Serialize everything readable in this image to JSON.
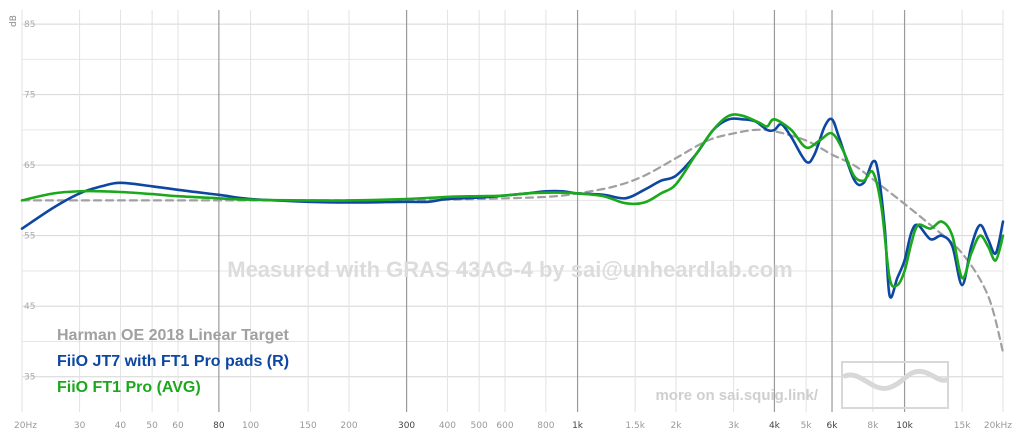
{
  "chart_data": {
    "type": "line",
    "ylabel": "dB",
    "ylim": [
      30,
      87
    ],
    "xlim": [
      20,
      20000
    ],
    "x_scale": "log",
    "grid": true,
    "y_ticks": [
      35,
      45,
      55,
      65,
      75,
      85
    ],
    "x_ticks": [
      {
        "value": 20,
        "label": "20Hz",
        "major": false
      },
      {
        "value": 30,
        "label": "30",
        "major": false
      },
      {
        "value": 40,
        "label": "40",
        "major": false
      },
      {
        "value": 50,
        "label": "50",
        "major": false
      },
      {
        "value": 60,
        "label": "60",
        "major": false
      },
      {
        "value": 80,
        "label": "80",
        "major": true
      },
      {
        "value": 100,
        "label": "100",
        "major": false
      },
      {
        "value": 150,
        "label": "150",
        "major": false
      },
      {
        "value": 200,
        "label": "200",
        "major": false
      },
      {
        "value": 300,
        "label": "300",
        "major": true
      },
      {
        "value": 400,
        "label": "400",
        "major": false
      },
      {
        "value": 500,
        "label": "500",
        "major": false
      },
      {
        "value": 600,
        "label": "600",
        "major": false
      },
      {
        "value": 800,
        "label": "800",
        "major": false
      },
      {
        "value": 1000,
        "label": "1k",
        "major": true
      },
      {
        "value": 1500,
        "label": "1.5k",
        "major": false
      },
      {
        "value": 2000,
        "label": "2k",
        "major": false
      },
      {
        "value": 3000,
        "label": "3k",
        "major": false
      },
      {
        "value": 4000,
        "label": "4k",
        "major": true
      },
      {
        "value": 5000,
        "label": "5k",
        "major": false
      },
      {
        "value": 6000,
        "label": "6k",
        "major": true
      },
      {
        "value": 8000,
        "label": "8k",
        "major": false
      },
      {
        "value": 10000,
        "label": "10k",
        "major": true
      },
      {
        "value": 15000,
        "label": "15k",
        "major": false
      },
      {
        "value": 20000,
        "label": "20kHz",
        "major": false
      }
    ],
    "annotation": "Measured with GRAS 43AG-4 by sai@unheardlab.com",
    "legend_position": "bottom-left",
    "series": [
      {
        "name": "Harman OE 2018 Linear Target",
        "color": "#a0a0a0",
        "dashed": true,
        "points": [
          [
            20,
            60
          ],
          [
            40,
            60
          ],
          [
            100,
            60
          ],
          [
            200,
            60
          ],
          [
            300,
            60
          ],
          [
            500,
            60.2
          ],
          [
            800,
            60.5
          ],
          [
            1000,
            61
          ],
          [
            1300,
            62
          ],
          [
            1600,
            63.5
          ],
          [
            2000,
            66
          ],
          [
            2500,
            68.5
          ],
          [
            3000,
            69.5
          ],
          [
            3500,
            70
          ],
          [
            4000,
            69.8
          ],
          [
            5000,
            68.5
          ],
          [
            6000,
            66.5
          ],
          [
            7000,
            65
          ],
          [
            8000,
            63
          ],
          [
            10000,
            59.5
          ],
          [
            12000,
            56.5
          ],
          [
            15000,
            52.5
          ],
          [
            18000,
            46.5
          ],
          [
            20000,
            38.5
          ]
        ]
      },
      {
        "name": "FiiO JT7 with FT1 Pro pads (R)",
        "color": "#0d47a1",
        "dashed": false,
        "points": [
          [
            20,
            56
          ],
          [
            25,
            59
          ],
          [
            30,
            61
          ],
          [
            35,
            62
          ],
          [
            40,
            62.5
          ],
          [
            50,
            62
          ],
          [
            60,
            61.5
          ],
          [
            80,
            60.8
          ],
          [
            100,
            60.2
          ],
          [
            150,
            59.8
          ],
          [
            200,
            59.7
          ],
          [
            300,
            59.8
          ],
          [
            350,
            59.8
          ],
          [
            400,
            60.2
          ],
          [
            500,
            60.4
          ],
          [
            600,
            60.7
          ],
          [
            700,
            61
          ],
          [
            800,
            61.3
          ],
          [
            900,
            61.3
          ],
          [
            1000,
            61
          ],
          [
            1200,
            60.8
          ],
          [
            1400,
            60.3
          ],
          [
            1600,
            61.5
          ],
          [
            1800,
            62.8
          ],
          [
            2000,
            63.5
          ],
          [
            2300,
            66.5
          ],
          [
            2600,
            70
          ],
          [
            2900,
            71.5
          ],
          [
            3200,
            71.5
          ],
          [
            3500,
            71.2
          ],
          [
            3800,
            70
          ],
          [
            4000,
            70
          ],
          [
            4200,
            70.8
          ],
          [
            4500,
            69
          ],
          [
            5000,
            65.5
          ],
          [
            5300,
            66.5
          ],
          [
            5700,
            70.5
          ],
          [
            6000,
            71.5
          ],
          [
            6300,
            69
          ],
          [
            7000,
            63
          ],
          [
            7500,
            62.5
          ],
          [
            8000,
            65.5
          ],
          [
            8300,
            64
          ],
          [
            8700,
            56
          ],
          [
            9000,
            46.5
          ],
          [
            9500,
            49
          ],
          [
            10000,
            51.5
          ],
          [
            10500,
            55.5
          ],
          [
            11000,
            56.5
          ],
          [
            12000,
            54.5
          ],
          [
            13000,
            55
          ],
          [
            14000,
            53.5
          ],
          [
            15000,
            48
          ],
          [
            16000,
            53.5
          ],
          [
            17000,
            56.5
          ],
          [
            18000,
            54.5
          ],
          [
            19000,
            52.5
          ],
          [
            20000,
            57
          ]
        ]
      },
      {
        "name": "FiiO FT1 Pro (AVG)",
        "color": "#1ca81c",
        "dashed": false,
        "points": [
          [
            20,
            60
          ],
          [
            25,
            61
          ],
          [
            30,
            61.3
          ],
          [
            35,
            61.3
          ],
          [
            40,
            61.2
          ],
          [
            50,
            60.9
          ],
          [
            60,
            60.6
          ],
          [
            80,
            60.3
          ],
          [
            100,
            60.1
          ],
          [
            150,
            60
          ],
          [
            200,
            60
          ],
          [
            300,
            60.2
          ],
          [
            400,
            60.5
          ],
          [
            500,
            60.6
          ],
          [
            600,
            60.7
          ],
          [
            700,
            61
          ],
          [
            800,
            61.1
          ],
          [
            900,
            61.1
          ],
          [
            1000,
            61
          ],
          [
            1200,
            60.6
          ],
          [
            1400,
            59.6
          ],
          [
            1600,
            59.7
          ],
          [
            1800,
            61
          ],
          [
            2000,
            62.3
          ],
          [
            2300,
            66.5
          ],
          [
            2600,
            70
          ],
          [
            2900,
            72
          ],
          [
            3200,
            72
          ],
          [
            3600,
            71
          ],
          [
            3800,
            70.5
          ],
          [
            4000,
            71.5
          ],
          [
            4500,
            70
          ],
          [
            5000,
            67.5
          ],
          [
            5500,
            68.5
          ],
          [
            6000,
            69.5
          ],
          [
            6500,
            67
          ],
          [
            7000,
            63.5
          ],
          [
            7500,
            62.8
          ],
          [
            8000,
            64
          ],
          [
            8500,
            59
          ],
          [
            9000,
            49
          ],
          [
            9500,
            48
          ],
          [
            10000,
            50
          ],
          [
            10500,
            54
          ],
          [
            11000,
            56.5
          ],
          [
            12000,
            56
          ],
          [
            13000,
            57
          ],
          [
            14000,
            55
          ],
          [
            15000,
            49
          ],
          [
            16000,
            52.5
          ],
          [
            17000,
            55
          ],
          [
            18000,
            53.5
          ],
          [
            19000,
            51.5
          ],
          [
            20000,
            55
          ]
        ]
      }
    ]
  },
  "credit": "more on sai.squig.link/"
}
